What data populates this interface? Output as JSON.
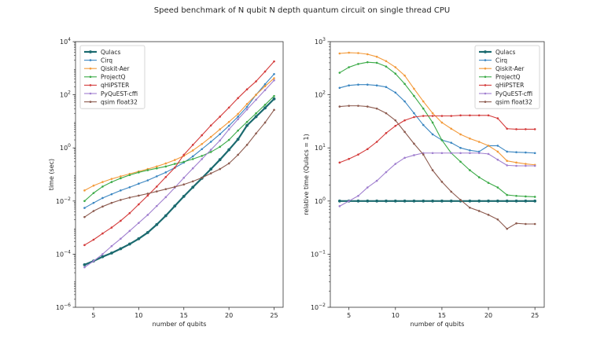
{
  "suptitle": "Speed benchmark of N qubit N depth quantum circuit on single thread CPU",
  "colors": {
    "Qulacs": "#1b6a6f",
    "Cirq": "#3a86c1",
    "Qiskit-Aer": "#f39a3a",
    "ProjectQ": "#3aaa46",
    "qHiPSTER": "#d43b3b",
    "PyQuEST-cffi": "#a07fcf",
    "qsim float32": "#8c5a4e"
  },
  "chart_data": [
    {
      "type": "line",
      "yscale": "log",
      "xlabel": "number of qubits",
      "ylabel": "time (sec)",
      "xlim": [
        3.0,
        26.0
      ],
      "ylim": [
        1e-06,
        10000.0
      ],
      "xticks": [
        5,
        10,
        15,
        20,
        25
      ],
      "yticks": [
        1e-06,
        0.0001,
        0.01,
        1.0,
        100.0,
        10000.0
      ],
      "ytick_labels": [
        {
          "base": "10",
          "exp": "−6"
        },
        {
          "base": "10",
          "exp": "−4"
        },
        {
          "base": "10",
          "exp": "−2"
        },
        {
          "base": "10",
          "exp": "0"
        },
        {
          "base": "10",
          "exp": "2"
        },
        {
          "base": "10",
          "exp": "4"
        }
      ],
      "legend": "upper-left",
      "grid": false,
      "x": [
        4,
        5,
        6,
        7,
        8,
        9,
        10,
        11,
        12,
        13,
        14,
        15,
        16,
        17,
        18,
        19,
        20,
        21,
        22,
        23,
        24,
        25
      ],
      "series": [
        {
          "name": "Qulacs",
          "values": [
            4e-05,
            5.5e-05,
            8e-05,
            0.00011,
            0.00016,
            0.00024,
            0.00038,
            0.00065,
            0.0013,
            0.0028,
            0.0065,
            0.015,
            0.033,
            0.072,
            0.16,
            0.36,
            0.85,
            2.1,
            7,
            15,
            32,
            70
          ]
        },
        {
          "name": "Cirq",
          "values": [
            0.0055,
            0.0085,
            0.013,
            0.018,
            0.025,
            0.033,
            0.045,
            0.06,
            0.085,
            0.12,
            0.18,
            0.28,
            0.48,
            0.9,
            1.7,
            3.3,
            6.8,
            15,
            35,
            100,
            250,
            600
          ]
        },
        {
          "name": "Qiskit-Aer",
          "values": [
            0.025,
            0.038,
            0.052,
            0.068,
            0.085,
            0.105,
            0.13,
            0.16,
            0.2,
            0.26,
            0.35,
            0.5,
            0.8,
            1.4,
            2.6,
            5,
            9.5,
            19,
            45,
            100,
            210,
            420
          ]
        },
        {
          "name": "ProjectQ",
          "values": [
            0.01,
            0.02,
            0.035,
            0.052,
            0.072,
            0.095,
            0.12,
            0.145,
            0.17,
            0.2,
            0.25,
            0.3,
            0.38,
            0.5,
            0.7,
            1.1,
            2,
            4.5,
            9.5,
            20,
            42,
            90
          ]
        },
        {
          "name": "qHiPSTER",
          "values": [
            0.00022,
            0.00035,
            0.0006,
            0.001,
            0.0018,
            0.0035,
            0.0075,
            0.016,
            0.035,
            0.08,
            0.18,
            0.55,
            1.3,
            3,
            7,
            15,
            33,
            75,
            160,
            320,
            750,
            1800
          ]
        },
        {
          "name": "PyQuEST-cffi",
          "values": [
            3.2e-05,
            5.5e-05,
            0.0001,
            0.0002,
            0.00038,
            0.00075,
            0.0015,
            0.003,
            0.0065,
            0.014,
            0.032,
            0.075,
            0.17,
            0.38,
            0.85,
            1.9,
            5,
            12,
            28,
            65,
            150,
            350
          ]
        },
        {
          "name": "qsim float32",
          "values": [
            0.0025,
            0.0042,
            0.0062,
            0.0085,
            0.011,
            0.0135,
            0.016,
            0.019,
            0.023,
            0.028,
            0.034,
            0.042,
            0.055,
            0.075,
            0.11,
            0.16,
            0.26,
            0.55,
            1.3,
            3.5,
            9,
            27
          ]
        }
      ]
    },
    {
      "type": "line",
      "yscale": "log",
      "xlabel": "number of qubits",
      "ylabel": "relative time (Qulacs = 1)",
      "xlim": [
        3.0,
        26.0
      ],
      "ylim": [
        0.01,
        1000.0
      ],
      "xticks": [
        5,
        10,
        15,
        20,
        25
      ],
      "yticks": [
        0.01,
        0.1,
        1.0,
        10.0,
        100.0,
        1000.0
      ],
      "ytick_labels": [
        {
          "base": "10",
          "exp": "−2"
        },
        {
          "base": "10",
          "exp": "−1"
        },
        {
          "base": "10",
          "exp": "0"
        },
        {
          "base": "10",
          "exp": "1"
        },
        {
          "base": "10",
          "exp": "2"
        },
        {
          "base": "10",
          "exp": "3"
        }
      ],
      "legend": "upper-right",
      "grid": false,
      "x": [
        4,
        5,
        6,
        7,
        8,
        9,
        10,
        11,
        12,
        13,
        14,
        15,
        16,
        17,
        18,
        19,
        20,
        21,
        22,
        23,
        24,
        25
      ],
      "series": [
        {
          "name": "Qulacs",
          "values": [
            1,
            1,
            1,
            1,
            1,
            1,
            1,
            1,
            1,
            1,
            1,
            1,
            1,
            1,
            1,
            1,
            1,
            1,
            1,
            1,
            1,
            1
          ]
        },
        {
          "name": "Cirq",
          "values": [
            135,
            150,
            155,
            155,
            150,
            140,
            110,
            75,
            45,
            27,
            18,
            14,
            12.5,
            10,
            9,
            8.5,
            11,
            11,
            8.5,
            8.3,
            8.2,
            8
          ]
        },
        {
          "name": "Qiskit-Aer",
          "values": [
            600,
            620,
            610,
            580,
            520,
            430,
            330,
            230,
            130,
            75,
            45,
            30,
            23,
            18,
            15,
            13,
            11,
            8.5,
            5.7,
            5.3,
            5.0,
            4.8
          ]
        },
        {
          "name": "ProjectQ",
          "values": [
            260,
            330,
            380,
            410,
            400,
            340,
            250,
            160,
            95,
            55,
            30,
            14,
            8,
            5.5,
            3.8,
            2.8,
            2.2,
            1.8,
            1.3,
            1.25,
            1.22,
            1.2
          ]
        },
        {
          "name": "qHiPSTER",
          "values": [
            5.3,
            6.2,
            7.5,
            9.5,
            13,
            19,
            26,
            33,
            38,
            40,
            40,
            40,
            40,
            41,
            41,
            41,
            41,
            36,
            23,
            22.5,
            22.5,
            22.5
          ]
        },
        {
          "name": "PyQuEST-cffi",
          "values": [
            0.8,
            1.0,
            1.25,
            1.8,
            2.4,
            3.5,
            5,
            6.5,
            7.3,
            8.0,
            8.0,
            8.0,
            8.0,
            8.0,
            8.0,
            8.0,
            7.7,
            6,
            4.7,
            4.6,
            4.6,
            4.6
          ]
        },
        {
          "name": "qsim float32",
          "values": [
            60,
            62,
            62,
            60,
            55,
            45,
            33,
            20,
            12,
            7.5,
            3.8,
            2.3,
            1.5,
            1.05,
            0.75,
            0.65,
            0.55,
            0.45,
            0.3,
            0.38,
            0.37,
            0.37
          ]
        }
      ]
    }
  ]
}
